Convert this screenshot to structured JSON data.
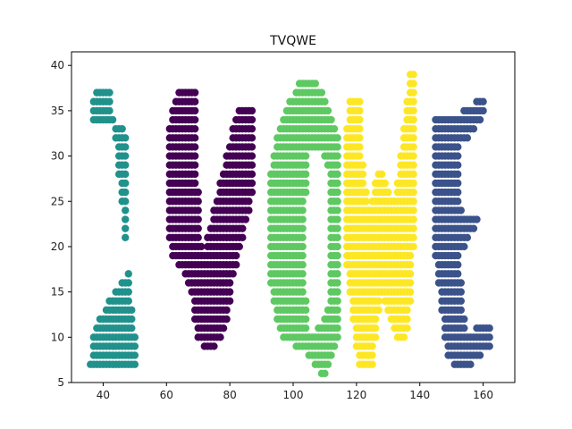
{
  "chart_data": {
    "type": "scatter",
    "title": "TVQWE",
    "xlabel": "",
    "ylabel": "",
    "xlim": [
      30,
      170
    ],
    "ylim": [
      5,
      41.5
    ],
    "xticks": [
      40,
      60,
      80,
      100,
      120,
      140,
      160
    ],
    "yticks": [
      5,
      10,
      15,
      20,
      25,
      30,
      35,
      40
    ],
    "grid": false,
    "legend": "none",
    "series": [
      {
        "color": "#21918c",
        "letter_label": "T",
        "segments": [
          [
            [
              42,
              38
            ],
            [
              39,
              38
            ],
            [
              38,
              37
            ],
            [
              45,
              37
            ],
            [
              37,
              36
            ],
            [
              47,
              36
            ],
            [
              37,
              35
            ],
            [
              60,
              35
            ],
            [
              37,
              34
            ],
            [
              60,
              34
            ],
            [
              47,
              33
            ],
            [
              60,
              33
            ],
            [
              48,
              32
            ],
            [
              59,
              32
            ],
            [
              48,
              31
            ],
            [
              56,
              31
            ],
            [
              48,
              30
            ],
            [
              54,
              30
            ],
            [
              48,
              29
            ],
            [
              54,
              29
            ],
            [
              48,
              28
            ],
            [
              53,
              28
            ],
            [
              48,
              27
            ],
            [
              53,
              27
            ],
            [
              48,
              26
            ],
            [
              53,
              26
            ],
            [
              48,
              25
            ],
            [
              53,
              25
            ],
            [
              48,
              24
            ],
            [
              53,
              24
            ],
            [
              48,
              23
            ],
            [
              53,
              23
            ],
            [
              48,
              22
            ],
            [
              53,
              22
            ],
            [
              48,
              21
            ],
            [
              53,
              21
            ],
            [
              48,
              20
            ],
            [
              53,
              20
            ],
            [
              48,
              19
            ],
            [
              53,
              19
            ],
            [
              48,
              18
            ],
            [
              53,
              18
            ],
            [
              48,
              17
            ],
            [
              53,
              17
            ],
            [
              46,
              16
            ],
            [
              53,
              16
            ],
            [
              44,
              15
            ],
            [
              53,
              15
            ],
            [
              42,
              14
            ],
            [
              53,
              14
            ],
            [
              41,
              13
            ],
            [
              53,
              13
            ],
            [
              39,
              12
            ],
            [
              53,
              12
            ],
            [
              38,
              11
            ],
            [
              53,
              11
            ],
            [
              37,
              10
            ],
            [
              52,
              10
            ],
            [
              37,
              9
            ],
            [
              52,
              9
            ],
            [
              37,
              8
            ],
            [
              52,
              8
            ],
            [
              36,
              7
            ],
            [
              51,
              7
            ]
          ]
        ]
      },
      {
        "color": "#440154",
        "letter_label": "V",
        "segments": [
          [
            [
              66,
              38
            ],
            [
              64,
              37
            ],
            [
              63,
              36
            ],
            [
              62,
              35
            ],
            [
              61,
              33
            ],
            [
              61,
              30
            ],
            [
              61,
              27
            ],
            [
              61,
              24
            ],
            [
              61,
              21
            ],
            [
              62,
              19
            ],
            [
              66,
              17
            ],
            [
              68,
              15
            ],
            [
              69,
              12
            ],
            [
              70,
              10
            ],
            [
              74,
              8
            ],
            [
              78,
              10
            ],
            [
              80,
              13
            ],
            [
              81,
              16
            ],
            [
              83,
              19
            ],
            [
              85,
              22
            ],
            [
              87,
              25
            ],
            [
              88,
              28
            ],
            [
              88,
              31
            ],
            [
              88,
              34
            ],
            [
              87,
              36
            ],
            [
              84,
              36
            ],
            [
              81,
              33
            ],
            [
              79,
              30
            ],
            [
              77,
              27
            ],
            [
              75,
              24
            ],
            [
              73,
              21
            ],
            [
              72,
              19
            ],
            [
              71,
              21
            ],
            [
              71,
              24
            ],
            [
              70,
              27
            ],
            [
              70,
              30
            ],
            [
              70,
              33
            ],
            [
              70,
              36
            ],
            [
              69,
              38
            ],
            [
              66,
              38
            ]
          ]
        ]
      },
      {
        "color": "#5ec962",
        "letter_label": "Q",
        "segments": [
          [
            [
              106,
              39
            ],
            [
              102,
              38
            ],
            [
              99,
              36
            ],
            [
              97,
              34
            ],
            [
              95,
              32
            ],
            [
              94,
              30
            ],
            [
              93,
              28
            ],
            [
              93,
              25
            ],
            [
              93,
              22
            ],
            [
              93,
              19
            ],
            [
              93,
              16
            ],
            [
              94,
              14
            ],
            [
              95,
              12
            ],
            [
              97,
              10
            ],
            [
              101,
              9
            ],
            [
              105,
              8
            ],
            [
              107,
              7
            ],
            [
              109,
              6
            ],
            [
              111,
              6
            ],
            [
              113,
              8
            ],
            [
              115,
              10
            ],
            [
              115,
              14
            ],
            [
              115,
              18
            ],
            [
              115,
              22
            ],
            [
              115,
              26
            ],
            [
              115,
              30
            ],
            [
              114,
              33
            ],
            [
              112,
              35
            ],
            [
              110,
              37
            ],
            [
              108,
              38
            ],
            [
              106,
              39
            ]
          ],
          [
            [
              105,
              30
            ],
            [
              104,
              25
            ],
            [
              104,
              20
            ],
            [
              104,
              15
            ],
            [
              105,
              11
            ],
            [
              108,
              11
            ],
            [
              111,
              13
            ],
            [
              112,
              17
            ],
            [
              112,
              21
            ],
            [
              112,
              25
            ],
            [
              111,
              29
            ],
            [
              109,
              31
            ],
            [
              106,
              31
            ],
            [
              105,
              30
            ]
          ]
        ]
      },
      {
        "color": "#fde725",
        "letter_label": "W",
        "segments": [
          [
            [
              121,
              37
            ],
            [
              118,
              36
            ],
            [
              117,
              33
            ],
            [
              117,
              30
            ],
            [
              117,
              27
            ],
            [
              117,
              24
            ],
            [
              117,
              21
            ],
            [
              117,
              18
            ],
            [
              118,
              15
            ],
            [
              119,
              12
            ],
            [
              120,
              9
            ],
            [
              121,
              7
            ],
            [
              125,
              6
            ],
            [
              126,
              9
            ],
            [
              127,
              12
            ],
            [
              128,
              15
            ],
            [
              130,
              13
            ],
            [
              132,
              11
            ],
            [
              134,
              9
            ],
            [
              136,
              10
            ],
            [
              137,
              13
            ],
            [
              138,
              16
            ],
            [
              138,
              19
            ],
            [
              139,
              22
            ],
            [
              139,
              25
            ],
            [
              139,
              28
            ],
            [
              139,
              31
            ],
            [
              139,
              34
            ],
            [
              139,
              37
            ],
            [
              139,
              40
            ],
            [
              137,
              39
            ],
            [
              136,
              36
            ],
            [
              135,
              33
            ],
            [
              134,
              30
            ],
            [
              133,
              27
            ],
            [
              132,
              25
            ],
            [
              130,
              27
            ],
            [
              128,
              29
            ],
            [
              126,
              27
            ],
            [
              124,
              24
            ],
            [
              123,
              27
            ],
            [
              122,
              30
            ],
            [
              122,
              33
            ],
            [
              121,
              37
            ]
          ]
        ]
      },
      {
        "color": "#3b528b",
        "letter_label": "E",
        "segments": [
          [
            [
              161,
              37
            ],
            [
              158,
              36
            ],
            [
              154,
              35
            ],
            [
              148,
              35
            ],
            [
              145,
              34
            ],
            [
              145,
              31
            ],
            [
              145,
              28
            ],
            [
              145,
              25
            ],
            [
              145,
              22
            ],
            [
              145,
              19
            ],
            [
              146,
              16
            ],
            [
              147,
              13
            ],
            [
              148,
              10
            ],
            [
              149,
              8
            ],
            [
              151,
              7
            ],
            [
              154,
              6
            ],
            [
              157,
              7
            ],
            [
              160,
              8
            ],
            [
              163,
              9
            ],
            [
              163,
              11
            ],
            [
              163,
              12
            ],
            [
              160,
              12
            ],
            [
              158,
              11
            ],
            [
              155,
              11
            ],
            [
              154,
              13
            ],
            [
              154,
              15
            ],
            [
              153,
              17
            ],
            [
              153,
              19
            ],
            [
              156,
              21
            ],
            [
              159,
              23
            ],
            [
              160,
              24
            ],
            [
              157,
              24
            ],
            [
              155,
              23
            ],
            [
              153,
              25
            ],
            [
              153,
              28
            ],
            [
              153,
              31
            ],
            [
              156,
              32
            ],
            [
              160,
              34
            ],
            [
              161,
              37
            ]
          ]
        ]
      }
    ]
  }
}
